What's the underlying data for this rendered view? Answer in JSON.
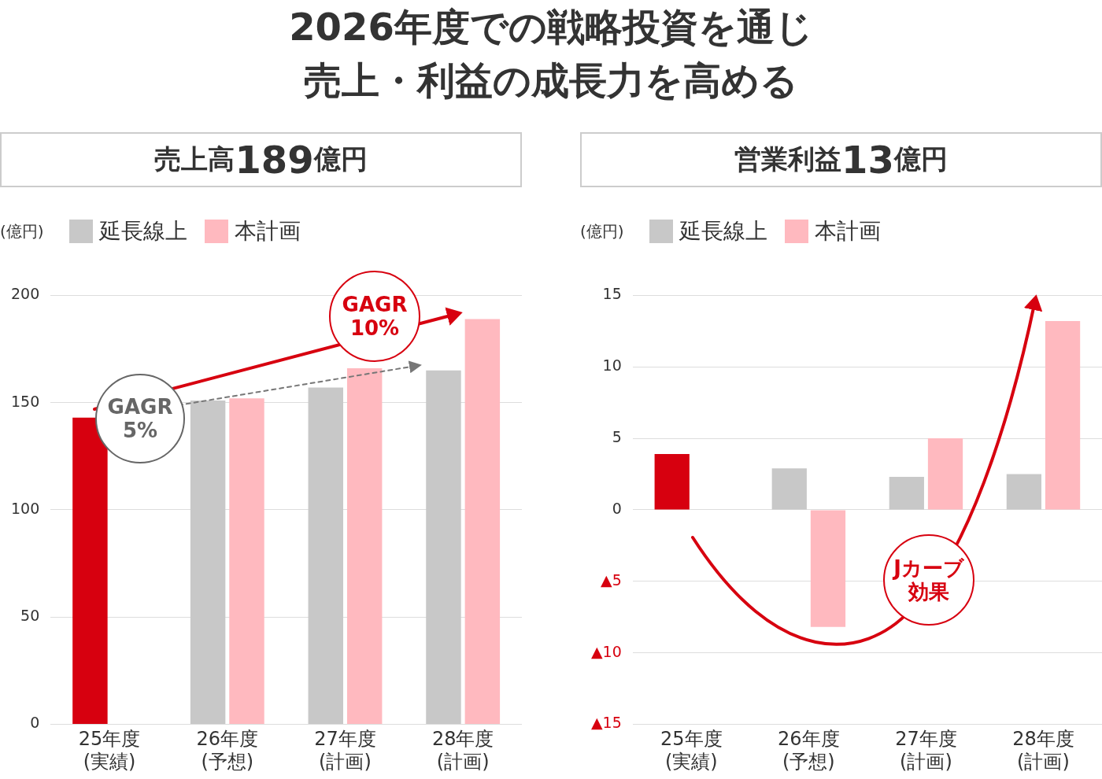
{
  "chart_data": [
    {
      "type": "bar",
      "title": "2026年度での戦略投資を通じ売上・利益の成長力を高める",
      "subtitle": "売上高189億円",
      "ylabel": "(億円)",
      "categories": [
        "25年度\n(実績)",
        "26年度\n(予想)",
        "27年度\n(計画)",
        "28年度\n(計画)"
      ],
      "series": [
        {
          "name": "延長線上",
          "color": "#c8c8c8",
          "colors": [
            "#d7000f",
            "#c8c8c8",
            "#c8c8c8",
            "#c8c8c8"
          ],
          "values": [
            143,
            151,
            157,
            165
          ]
        },
        {
          "name": "本計画",
          "color": "#ffb9bf",
          "values": [
            null,
            152,
            166,
            189
          ]
        }
      ],
      "ylim": [
        0,
        200
      ],
      "yticks": [
        0,
        50,
        100,
        150,
        200
      ],
      "grid": "y",
      "legend": "top left",
      "annotations": [
        "GAGR 5%",
        "GAGR 10%"
      ]
    },
    {
      "type": "bar",
      "subtitle": "営業利益13億円",
      "ylabel": "(億円)",
      "categories": [
        "25年度\n(実績)",
        "26年度\n(予想)",
        "27年度\n(計画)",
        "28年度\n(計画)"
      ],
      "series": [
        {
          "name": "延長線上",
          "color": "#c8c8c8",
          "colors": [
            "#d7000f",
            "#c8c8c8",
            "#c8c8c8",
            "#c8c8c8"
          ],
          "values": [
            3.9,
            2.9,
            2.3,
            2.5
          ]
        },
        {
          "name": "本計画",
          "color": "#ffb9bf",
          "values": [
            null,
            -8.2,
            5.0,
            13.2
          ]
        }
      ],
      "ylim": [
        -15,
        15
      ],
      "yticks": [
        {
          "value": -15,
          "label": "▲15"
        },
        {
          "value": -10,
          "label": "▲10"
        },
        {
          "value": -5,
          "label": "▲5"
        },
        0,
        5,
        10,
        15
      ],
      "grid": "y",
      "legend": "top left",
      "annotations": [
        "Jカーブ効果"
      ]
    }
  ]
}
